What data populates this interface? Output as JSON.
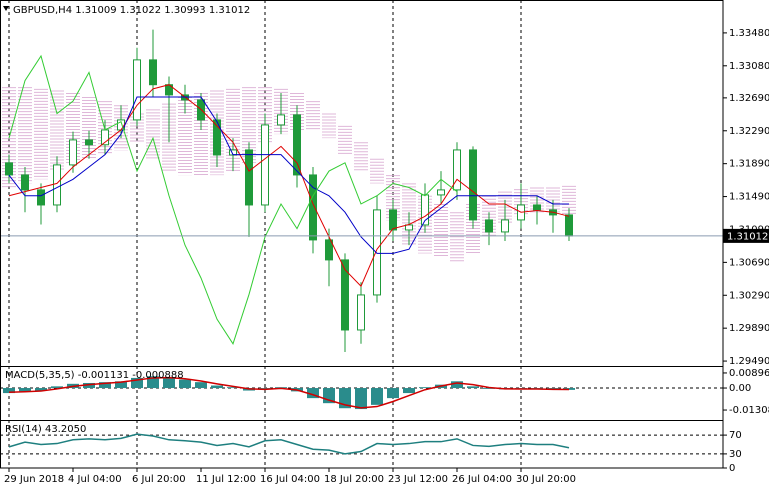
{
  "chart_data": [
    {
      "type": "candlestick",
      "title": "GBPUSD,H4  1.31009 1.31022 1.30993 1.31012",
      "categories": [
        "29 Jun 2018",
        null,
        null,
        null,
        "4 Jul 04:00",
        null,
        null,
        null,
        "6 Jul 20:00",
        null,
        null,
        null,
        "11 Jul 12:00",
        null,
        null,
        null,
        "16 Jul 04:00",
        null,
        null,
        null,
        "18 Jul 20:00",
        null,
        null,
        null,
        "23 Jul 12:00",
        null,
        null,
        null,
        "26 Jul 04:00",
        null,
        null,
        null,
        "30 Jul 20:00",
        null,
        null,
        null
      ],
      "open": [
        1.319,
        1.31753,
        1.31571,
        1.31388,
        1.31875,
        1.32179,
        1.3212,
        1.323,
        1.32422,
        1.33152,
        1.3285,
        1.32726,
        1.32665,
        1.32422,
        1.31996,
        1.32057,
        1.31388,
        1.32361,
        1.32483,
        1.31753,
        1.30963,
        1.3072,
        1.29868,
        1.30294,
        1.31328,
        1.31084,
        1.31145,
        1.3151,
        1.31571,
        1.32057,
        1.31206,
        1.3106,
        1.31206,
        1.31388,
        1.31328,
        1.31267
      ],
      "high": [
        1.32,
        1.3185,
        1.3165,
        1.3198,
        1.3228,
        1.3229,
        1.3242,
        1.326,
        1.333,
        1.3352,
        1.3295,
        1.3285,
        1.3275,
        1.325,
        1.322,
        1.3215,
        1.325,
        1.3275,
        1.326,
        1.3185,
        1.311,
        1.308,
        1.3045,
        1.315,
        1.3145,
        1.313,
        1.3165,
        1.318,
        1.3215,
        1.321,
        1.313,
        1.3145,
        1.3165,
        1.315,
        1.3145,
        1.3135
      ],
      "low": [
        1.3165,
        1.313,
        1.3115,
        1.313,
        1.3178,
        1.3195,
        1.32,
        1.322,
        1.3235,
        1.327,
        1.3215,
        1.325,
        1.323,
        1.3185,
        1.318,
        1.31,
        1.313,
        1.3225,
        1.316,
        1.308,
        1.304,
        1.296,
        1.297,
        1.302,
        1.3095,
        1.309,
        1.3105,
        1.314,
        1.3145,
        1.311,
        1.309,
        1.3095,
        1.311,
        1.3115,
        1.3105,
        1.3095
      ],
      "close": [
        1.31753,
        1.31571,
        1.31388,
        1.31875,
        1.32179,
        1.3212,
        1.323,
        1.32422,
        1.33152,
        1.3285,
        1.32726,
        1.32665,
        1.32422,
        1.31996,
        1.32057,
        1.31388,
        1.32361,
        1.32483,
        1.31753,
        1.30963,
        1.3072,
        1.29868,
        1.30294,
        1.31328,
        1.31084,
        1.31145,
        1.3151,
        1.31571,
        1.32057,
        1.31206,
        1.3106,
        1.31206,
        1.31388,
        1.31328,
        1.31267,
        1.31012
      ],
      "up_color": "#1f9a3a",
      "down_color": "#1f9a3a",
      "cloud": {
        "span_a": [
          1.3282,
          1.3282,
          1.328,
          1.3278,
          1.3275,
          1.327,
          1.3265,
          1.326,
          1.325,
          1.3255,
          1.3262,
          1.327,
          1.3275,
          1.3278,
          1.328,
          1.3282,
          1.3282,
          1.328,
          1.3275,
          1.3265,
          1.325,
          1.3235,
          1.3215,
          1.3195,
          1.3175,
          1.3165,
          1.315,
          1.314,
          1.313,
          1.314,
          1.315,
          1.3155,
          1.3158,
          1.316,
          1.316,
          1.3162
        ],
        "span_b": [
          1.316,
          1.3165,
          1.317,
          1.318,
          1.319,
          1.3195,
          1.32,
          1.3205,
          1.3215,
          1.3195,
          1.318,
          1.3175,
          1.3175,
          1.3175,
          1.318,
          1.319,
          1.3215,
          1.3225,
          1.323,
          1.323,
          1.322,
          1.32,
          1.318,
          1.3165,
          1.312,
          1.309,
          1.308,
          1.3075,
          1.307,
          1.308,
          1.31,
          1.3115,
          1.3125,
          1.313,
          1.313,
          1.3128
        ],
        "up_color": "#d8a6d0",
        "down_color": "#e89a60"
      },
      "series": [
        {
          "color": "#e00000",
          "values": [
            1.315,
            1.3155,
            1.316,
            1.3165,
            1.3185,
            1.32,
            1.3215,
            1.323,
            1.326,
            1.328,
            1.3285,
            1.327,
            1.3255,
            1.3235,
            1.3215,
            1.318,
            1.3195,
            1.321,
            1.319,
            1.314,
            1.31,
            1.306,
            1.304,
            1.3085,
            1.311,
            1.3115,
            1.3125,
            1.314,
            1.317,
            1.3155,
            1.314,
            1.314,
            1.313,
            1.3132,
            1.313,
            1.3125
          ]
        },
        {
          "color": "#0000c8",
          "values": [
            1.3175,
            1.315,
            1.315,
            1.316,
            1.317,
            1.3185,
            1.32,
            1.3225,
            1.327,
            1.327,
            1.327,
            1.327,
            1.327,
            1.324,
            1.32,
            1.32,
            1.32,
            1.32,
            1.318,
            1.316,
            1.315,
            1.313,
            1.31,
            1.308,
            1.308,
            1.3085,
            1.312,
            1.3135,
            1.315,
            1.315,
            1.315,
            1.315,
            1.315,
            1.315,
            1.314,
            1.314
          ]
        },
        {
          "color": "#33cc33",
          "values": [
            1.322,
            1.329,
            1.332,
            1.325,
            1.3265,
            1.33,
            1.323,
            1.324,
            1.318,
            1.322,
            1.315,
            1.309,
            1.305,
            1.3,
            1.297,
            1.303,
            1.31,
            1.314,
            1.311,
            1.315,
            1.318,
            1.319,
            1.314,
            1.315,
            1.3165,
            1.316,
            1.315,
            1.317,
            1.3155,
            null,
            null,
            null,
            null,
            null,
            null,
            null
          ]
        }
      ],
      "price_line_color": "#8a9bb0",
      "ylim": [
        1.2943,
        1.3388
      ],
      "yticks": [
        {
          "value": 1.3348,
          "label": "1.33480"
        },
        {
          "value": 1.3308,
          "label": "1.33080"
        },
        {
          "value": 1.3269,
          "label": "1.32690"
        },
        {
          "value": 1.3229,
          "label": "1.32290"
        },
        {
          "value": 1.3189,
          "label": "1.31890"
        },
        {
          "value": 1.3149,
          "label": "1.31490"
        },
        {
          "value": 1.3109,
          "label": "1.31090"
        },
        {
          "value": 1.3069,
          "label": "1.30690"
        },
        {
          "value": 1.3029,
          "label": "1.30290"
        },
        {
          "value": 1.2989,
          "label": "1.29890"
        },
        {
          "value": 1.2949,
          "label": "1.29490"
        }
      ],
      "grid": false
    },
    {
      "type": "macd",
      "title": "MACD(5,35,5) -0.001131 -0.000888",
      "values": [
        -0.003,
        -0.002,
        -0.0015,
        0.001,
        0.0025,
        0.003,
        0.0035,
        0.004,
        0.006,
        0.007,
        0.006,
        0.005,
        0.0035,
        0.0015,
        0.0005,
        -0.0015,
        -0.0005,
        0.0005,
        -0.002,
        -0.006,
        -0.009,
        -0.012,
        -0.0125,
        -0.01,
        -0.006,
        -0.003,
        0.0005,
        0.002,
        0.004,
        0.001,
        -0.0005,
        -0.0008,
        -0.0005,
        -0.0006,
        -0.0009,
        -0.0011
      ],
      "color": "#2a8c8c",
      "signal": {
        "color": "#d00000",
        "values": [
          -0.0025,
          -0.0022,
          -0.0018,
          -0.0005,
          0.001,
          0.002,
          0.0028,
          0.0035,
          0.0048,
          0.006,
          0.0062,
          0.0055,
          0.0042,
          0.0025,
          0.001,
          -0.0005,
          -0.0008,
          -0.0002,
          -0.0012,
          -0.004,
          -0.0072,
          -0.01,
          -0.0118,
          -0.011,
          -0.008,
          -0.0045,
          -0.001,
          0.0012,
          0.003,
          0.002,
          0.0003,
          -0.0005,
          -0.0006,
          -0.0006,
          -0.0008,
          -0.0009
        ]
      },
      "ylim": [
        -0.019,
        0.0125
      ],
      "yticks": [
        0.00896,
        {
          "value": 0,
          "label": "0.00"
        },
        -0.013081
      ],
      "grid": false
    },
    {
      "type": "line",
      "title": "RSI(14) 43.2050",
      "values": [
        45,
        55,
        50,
        52,
        60,
        62,
        60,
        63,
        72,
        68,
        60,
        58,
        55,
        48,
        52,
        45,
        58,
        60,
        50,
        40,
        38,
        30,
        35,
        52,
        50,
        52,
        56,
        56,
        62,
        48,
        46,
        50,
        52,
        50,
        50,
        43
      ],
      "color": "#1e7f7f",
      "ylim": [
        0,
        100
      ],
      "yticks": [
        70,
        30,
        0
      ],
      "grid": true
    }
  ]
}
